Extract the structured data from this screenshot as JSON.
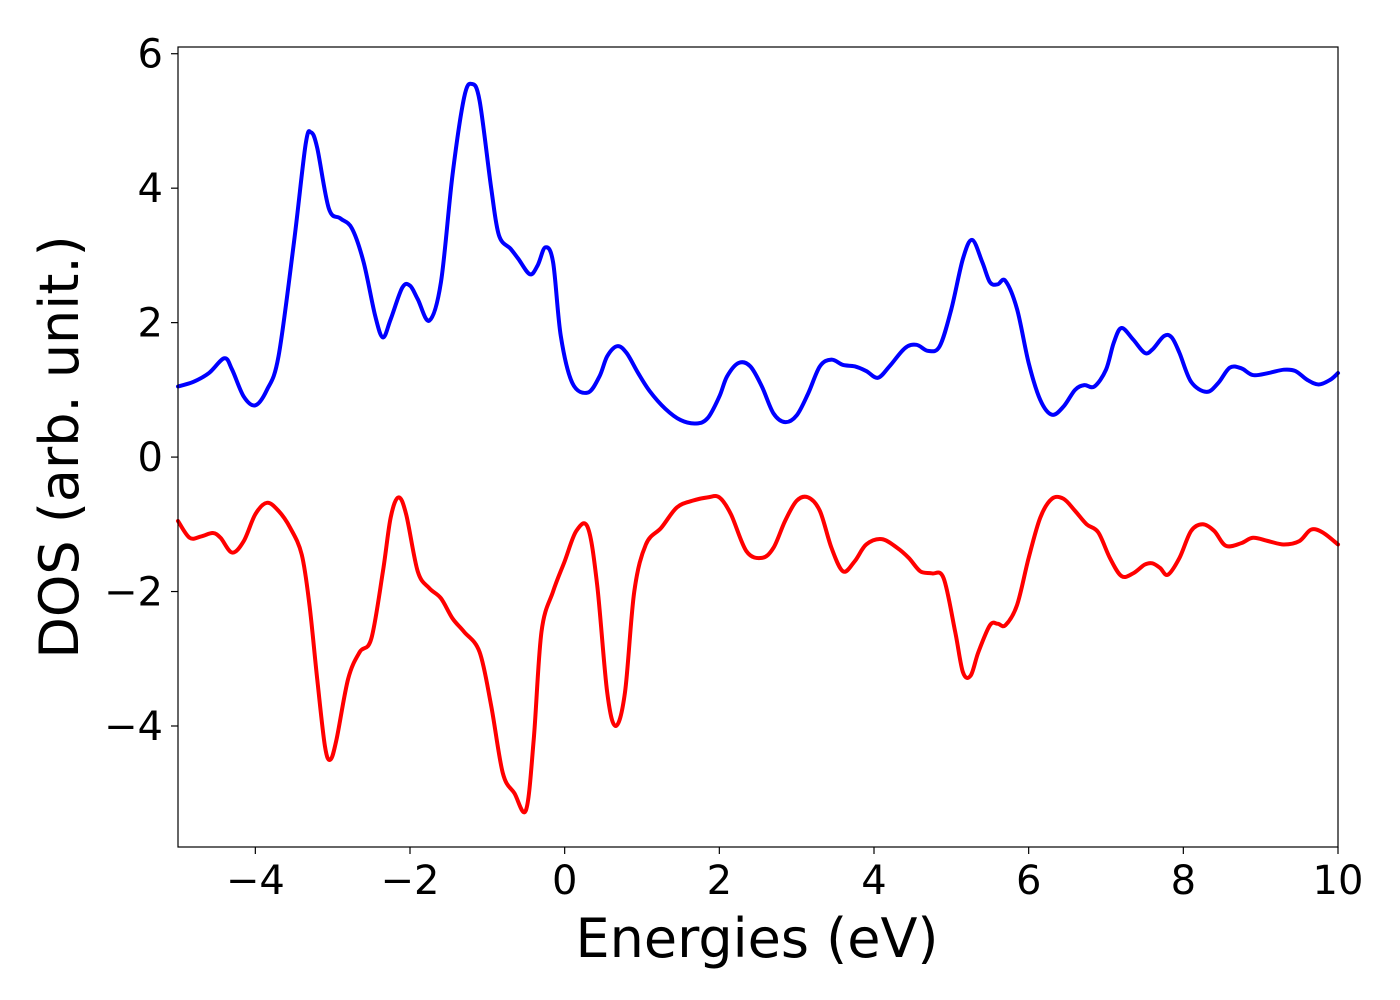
{
  "chart_data": {
    "type": "line",
    "xlabel": "Energies (eV)",
    "ylabel": "DOS (arb. unit.)",
    "xlim": [
      -5,
      10
    ],
    "ylim": [
      -5.8,
      6.1
    ],
    "xticks": [
      -4,
      -2,
      0,
      2,
      4,
      6,
      8,
      10
    ],
    "yticks": [
      -4,
      -2,
      0,
      2,
      4,
      6
    ],
    "xtick_labels": [
      "−4",
      "−2",
      "0",
      "2",
      "4",
      "6",
      "8",
      "10"
    ],
    "ytick_labels": [
      "−4",
      "−2",
      "0",
      "2",
      "4",
      "6"
    ],
    "grid": false,
    "series": [
      {
        "color": "#0000ff",
        "points": [
          [
            -5.0,
            1.05
          ],
          [
            -4.8,
            1.12
          ],
          [
            -4.6,
            1.25
          ],
          [
            -4.4,
            1.47
          ],
          [
            -4.3,
            1.3
          ],
          [
            -4.15,
            0.9
          ],
          [
            -4.0,
            0.77
          ],
          [
            -3.85,
            1.0
          ],
          [
            -3.7,
            1.5
          ],
          [
            -3.5,
            3.2
          ],
          [
            -3.35,
            4.65
          ],
          [
            -3.28,
            4.83
          ],
          [
            -3.2,
            4.6
          ],
          [
            -3.05,
            3.7
          ],
          [
            -2.9,
            3.55
          ],
          [
            -2.75,
            3.4
          ],
          [
            -2.6,
            2.9
          ],
          [
            -2.45,
            2.1
          ],
          [
            -2.35,
            1.78
          ],
          [
            -2.25,
            2.05
          ],
          [
            -2.1,
            2.52
          ],
          [
            -2.0,
            2.55
          ],
          [
            -1.9,
            2.35
          ],
          [
            -1.75,
            2.03
          ],
          [
            -1.6,
            2.6
          ],
          [
            -1.45,
            4.2
          ],
          [
            -1.3,
            5.35
          ],
          [
            -1.2,
            5.55
          ],
          [
            -1.1,
            5.3
          ],
          [
            -0.95,
            4.0
          ],
          [
            -0.85,
            3.3
          ],
          [
            -0.7,
            3.1
          ],
          [
            -0.6,
            2.95
          ],
          [
            -0.45,
            2.72
          ],
          [
            -0.35,
            2.85
          ],
          [
            -0.25,
            3.12
          ],
          [
            -0.15,
            2.9
          ],
          [
            -0.05,
            1.8
          ],
          [
            0.1,
            1.1
          ],
          [
            0.3,
            0.96
          ],
          [
            0.45,
            1.2
          ],
          [
            0.55,
            1.5
          ],
          [
            0.68,
            1.65
          ],
          [
            0.8,
            1.55
          ],
          [
            0.95,
            1.25
          ],
          [
            1.1,
            0.98
          ],
          [
            1.3,
            0.72
          ],
          [
            1.5,
            0.55
          ],
          [
            1.7,
            0.5
          ],
          [
            1.85,
            0.58
          ],
          [
            2.0,
            0.9
          ],
          [
            2.1,
            1.2
          ],
          [
            2.25,
            1.4
          ],
          [
            2.4,
            1.35
          ],
          [
            2.55,
            1.05
          ],
          [
            2.7,
            0.65
          ],
          [
            2.85,
            0.52
          ],
          [
            3.0,
            0.62
          ],
          [
            3.15,
            0.95
          ],
          [
            3.3,
            1.35
          ],
          [
            3.45,
            1.45
          ],
          [
            3.6,
            1.37
          ],
          [
            3.75,
            1.35
          ],
          [
            3.9,
            1.28
          ],
          [
            4.05,
            1.18
          ],
          [
            4.2,
            1.35
          ],
          [
            4.4,
            1.62
          ],
          [
            4.55,
            1.67
          ],
          [
            4.7,
            1.58
          ],
          [
            4.85,
            1.65
          ],
          [
            5.0,
            2.2
          ],
          [
            5.15,
            2.95
          ],
          [
            5.27,
            3.23
          ],
          [
            5.4,
            2.9
          ],
          [
            5.5,
            2.6
          ],
          [
            5.6,
            2.57
          ],
          [
            5.7,
            2.62
          ],
          [
            5.85,
            2.2
          ],
          [
            6.0,
            1.4
          ],
          [
            6.15,
            0.85
          ],
          [
            6.3,
            0.63
          ],
          [
            6.45,
            0.75
          ],
          [
            6.6,
            1.0
          ],
          [
            6.72,
            1.07
          ],
          [
            6.85,
            1.05
          ],
          [
            7.0,
            1.3
          ],
          [
            7.1,
            1.7
          ],
          [
            7.2,
            1.92
          ],
          [
            7.35,
            1.75
          ],
          [
            7.5,
            1.55
          ],
          [
            7.6,
            1.6
          ],
          [
            7.75,
            1.8
          ],
          [
            7.85,
            1.78
          ],
          [
            7.95,
            1.55
          ],
          [
            8.1,
            1.12
          ],
          [
            8.3,
            0.97
          ],
          [
            8.45,
            1.1
          ],
          [
            8.6,
            1.33
          ],
          [
            8.75,
            1.32
          ],
          [
            8.9,
            1.22
          ],
          [
            9.1,
            1.25
          ],
          [
            9.3,
            1.3
          ],
          [
            9.45,
            1.28
          ],
          [
            9.6,
            1.15
          ],
          [
            9.75,
            1.08
          ],
          [
            9.9,
            1.15
          ],
          [
            10.0,
            1.25
          ]
        ]
      },
      {
        "color": "#ff0000",
        "points": [
          [
            -5.0,
            -0.95
          ],
          [
            -4.85,
            -1.2
          ],
          [
            -4.7,
            -1.18
          ],
          [
            -4.55,
            -1.13
          ],
          [
            -4.45,
            -1.2
          ],
          [
            -4.3,
            -1.42
          ],
          [
            -4.15,
            -1.25
          ],
          [
            -4.0,
            -0.85
          ],
          [
            -3.85,
            -0.68
          ],
          [
            -3.7,
            -0.8
          ],
          [
            -3.55,
            -1.05
          ],
          [
            -3.4,
            -1.45
          ],
          [
            -3.3,
            -2.2
          ],
          [
            -3.2,
            -3.3
          ],
          [
            -3.1,
            -4.3
          ],
          [
            -3.03,
            -4.5
          ],
          [
            -2.95,
            -4.2
          ],
          [
            -2.8,
            -3.3
          ],
          [
            -2.65,
            -2.9
          ],
          [
            -2.5,
            -2.7
          ],
          [
            -2.35,
            -1.7
          ],
          [
            -2.25,
            -0.9
          ],
          [
            -2.15,
            -0.6
          ],
          [
            -2.05,
            -0.85
          ],
          [
            -1.9,
            -1.7
          ],
          [
            -1.75,
            -1.95
          ],
          [
            -1.6,
            -2.1
          ],
          [
            -1.45,
            -2.4
          ],
          [
            -1.3,
            -2.6
          ],
          [
            -1.1,
            -2.9
          ],
          [
            -0.95,
            -3.7
          ],
          [
            -0.8,
            -4.7
          ],
          [
            -0.65,
            -5.0
          ],
          [
            -0.5,
            -5.25
          ],
          [
            -0.4,
            -4.2
          ],
          [
            -0.3,
            -2.6
          ],
          [
            -0.15,
            -2.0
          ],
          [
            0.0,
            -1.55
          ],
          [
            0.15,
            -1.1
          ],
          [
            0.3,
            -1.05
          ],
          [
            0.42,
            -1.9
          ],
          [
            0.55,
            -3.5
          ],
          [
            0.66,
            -4.0
          ],
          [
            0.78,
            -3.5
          ],
          [
            0.9,
            -2.0
          ],
          [
            1.05,
            -1.3
          ],
          [
            1.25,
            -1.05
          ],
          [
            1.45,
            -0.75
          ],
          [
            1.65,
            -0.65
          ],
          [
            1.85,
            -0.6
          ],
          [
            2.0,
            -0.6
          ],
          [
            2.15,
            -0.85
          ],
          [
            2.35,
            -1.4
          ],
          [
            2.55,
            -1.5
          ],
          [
            2.7,
            -1.35
          ],
          [
            2.85,
            -0.95
          ],
          [
            3.0,
            -0.65
          ],
          [
            3.15,
            -0.6
          ],
          [
            3.3,
            -0.8
          ],
          [
            3.45,
            -1.35
          ],
          [
            3.6,
            -1.7
          ],
          [
            3.75,
            -1.55
          ],
          [
            3.9,
            -1.3
          ],
          [
            4.1,
            -1.22
          ],
          [
            4.3,
            -1.35
          ],
          [
            4.45,
            -1.5
          ],
          [
            4.6,
            -1.7
          ],
          [
            4.75,
            -1.73
          ],
          [
            4.9,
            -1.8
          ],
          [
            5.05,
            -2.6
          ],
          [
            5.15,
            -3.2
          ],
          [
            5.25,
            -3.25
          ],
          [
            5.35,
            -2.9
          ],
          [
            5.5,
            -2.5
          ],
          [
            5.6,
            -2.48
          ],
          [
            5.7,
            -2.5
          ],
          [
            5.85,
            -2.2
          ],
          [
            6.0,
            -1.5
          ],
          [
            6.15,
            -0.9
          ],
          [
            6.3,
            -0.62
          ],
          [
            6.45,
            -0.62
          ],
          [
            6.6,
            -0.8
          ],
          [
            6.75,
            -1.0
          ],
          [
            6.9,
            -1.12
          ],
          [
            7.05,
            -1.5
          ],
          [
            7.2,
            -1.77
          ],
          [
            7.35,
            -1.73
          ],
          [
            7.5,
            -1.6
          ],
          [
            7.6,
            -1.58
          ],
          [
            7.7,
            -1.65
          ],
          [
            7.8,
            -1.75
          ],
          [
            7.95,
            -1.5
          ],
          [
            8.1,
            -1.1
          ],
          [
            8.25,
            -1.0
          ],
          [
            8.4,
            -1.1
          ],
          [
            8.55,
            -1.32
          ],
          [
            8.75,
            -1.28
          ],
          [
            8.9,
            -1.2
          ],
          [
            9.1,
            -1.25
          ],
          [
            9.3,
            -1.3
          ],
          [
            9.5,
            -1.25
          ],
          [
            9.65,
            -1.08
          ],
          [
            9.8,
            -1.12
          ],
          [
            10.0,
            -1.3
          ]
        ]
      }
    ]
  }
}
